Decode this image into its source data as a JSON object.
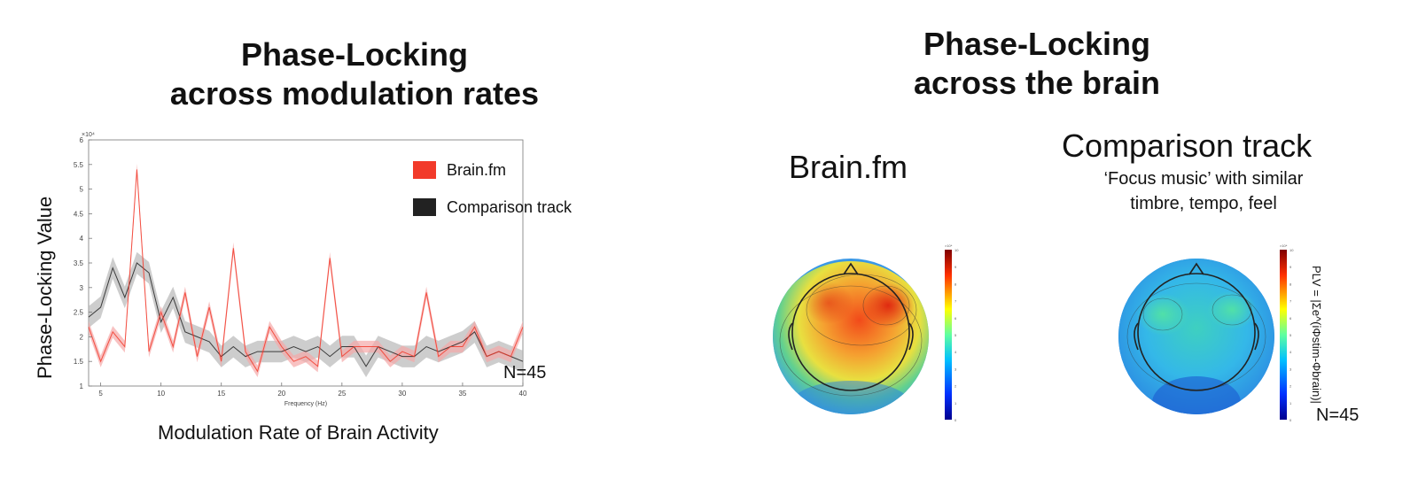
{
  "left_panel": {
    "title_line1": "Phase-Locking",
    "title_line2": "across modulation rates",
    "sample_size": "N=45"
  },
  "right_panel": {
    "title_line1": "Phase-Locking",
    "title_line2": "across the brain",
    "brainfm_label": "Brain.fm",
    "comparison_label": "Comparison track",
    "comparison_sub_line1": "‘Focus music’ with similar",
    "comparison_sub_line2": "timbre, tempo, feel",
    "colorbar_formula": "PLV = |Σe^(iΦstim-Φbrain)|",
    "sample_size": "N=45",
    "colorbar_ticks": [
      "0",
      "1",
      "2",
      "3",
      "4",
      "5",
      "6",
      "7",
      "8",
      "9",
      "10"
    ],
    "colorbar_exponent": "×10⁴"
  },
  "chart_data": {
    "type": "line",
    "title": "",
    "xlabel": "Frequency (Hz)",
    "xlabel_main": "Modulation Rate of Brain Activity",
    "ylabel": "Phase-Locking Value",
    "y_exponent": "×10⁴",
    "xlim": [
      4,
      40
    ],
    "ylim": [
      1,
      6
    ],
    "xticks": [
      5,
      10,
      15,
      20,
      25,
      30,
      35,
      40
    ],
    "yticks": [
      1,
      1.5,
      2,
      2.5,
      3,
      3.5,
      4,
      4.5,
      5,
      5.5,
      6
    ],
    "legend_position": "top-right",
    "x": [
      4,
      5,
      6,
      7,
      8,
      9,
      10,
      11,
      12,
      13,
      14,
      15,
      16,
      17,
      18,
      19,
      20,
      21,
      22,
      23,
      24,
      25,
      26,
      27,
      28,
      29,
      30,
      31,
      32,
      33,
      34,
      35,
      36,
      37,
      38,
      39,
      40
    ],
    "series": [
      {
        "name": "Brain.fm",
        "color": "#f23a2a",
        "band_color": "#f5a8a8",
        "values": [
          2.2,
          1.5,
          2.1,
          1.8,
          5.4,
          1.7,
          2.5,
          1.8,
          2.9,
          1.6,
          2.6,
          1.5,
          3.8,
          1.7,
          1.3,
          2.2,
          1.8,
          1.5,
          1.6,
          1.4,
          3.6,
          1.6,
          1.8,
          1.8,
          1.8,
          1.5,
          1.7,
          1.6,
          2.9,
          1.6,
          1.8,
          1.8,
          2.2,
          1.6,
          1.7,
          1.6,
          2.2
        ],
        "band": 0.12
      },
      {
        "name": "Comparison track",
        "color": "#222222",
        "band_color": "#b8b8b8",
        "values": [
          2.4,
          2.6,
          3.4,
          2.8,
          3.5,
          3.3,
          2.3,
          2.8,
          2.1,
          2.0,
          1.9,
          1.6,
          1.8,
          1.6,
          1.7,
          1.7,
          1.7,
          1.8,
          1.7,
          1.8,
          1.6,
          1.8,
          1.8,
          1.4,
          1.8,
          1.7,
          1.6,
          1.6,
          1.8,
          1.7,
          1.8,
          1.9,
          2.1,
          1.6,
          1.7,
          1.6,
          1.5
        ],
        "band": 0.22
      }
    ]
  }
}
